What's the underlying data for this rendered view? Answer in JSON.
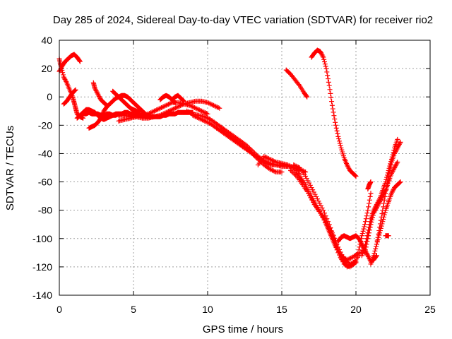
{
  "chart_data": {
    "type": "scatter",
    "title": "Day 285 of 2024, Sidereal Day-to-day VTEC variation (SDTVAR) for receiver rio2",
    "xlabel": "GPS time / hours",
    "ylabel": "SDTVAR / TECUs",
    "xlim": [
      0,
      25
    ],
    "ylim": [
      -140,
      40
    ],
    "xticks": [
      0,
      5,
      10,
      15,
      20,
      25
    ],
    "yticks": [
      -140,
      -120,
      -100,
      -80,
      -60,
      -40,
      -20,
      0,
      20,
      40
    ],
    "grid": true,
    "marker": "+",
    "color": "#ff0000",
    "series": [
      {
        "x": [
          0.0,
          0.2,
          0.4,
          0.6,
          0.8,
          1.0,
          1.2,
          1.4
        ],
        "y": [
          18,
          22,
          25,
          27,
          29,
          30,
          28,
          25
        ]
      },
      {
        "x": [
          0.0,
          0.1,
          0.3,
          0.5,
          0.7,
          0.9,
          1.0,
          1.1,
          1.2,
          1.4,
          1.6
        ],
        "y": [
          27,
          22,
          14,
          10,
          5,
          0,
          -4,
          -8,
          -12,
          -14,
          -15
        ]
      },
      {
        "x": [
          0.3,
          0.5,
          0.7,
          0.9,
          1.1
        ],
        "y": [
          -5,
          -3,
          0,
          3,
          5
        ]
      },
      {
        "x": [
          1.6,
          1.8,
          2.0,
          2.2,
          2.4,
          2.6,
          2.8,
          3.0,
          3.2,
          3.4,
          3.6,
          3.8,
          4.0,
          4.2,
          4.4,
          4.6,
          4.8,
          5.0,
          5.2,
          5.4,
          5.6,
          5.8,
          6.0,
          6.2,
          6.4,
          6.6,
          6.8,
          7.0,
          7.2,
          7.4,
          7.6,
          7.8,
          8.0,
          8.2,
          8.4,
          8.6,
          8.8,
          9.0
        ],
        "y": [
          -12,
          -12,
          -11,
          -12,
          -12,
          -12,
          -13,
          -13,
          -12,
          -12,
          -13,
          -13,
          -12,
          -12,
          -11,
          -11,
          -12,
          -12,
          -13,
          -13,
          -13,
          -14,
          -14,
          -14,
          -14,
          -14,
          -14,
          -13,
          -13,
          -12,
          -12,
          -12,
          -11,
          -11,
          -11,
          -11,
          -11,
          -11
        ]
      },
      {
        "x": [
          2.0,
          2.2,
          2.4,
          2.6,
          2.8,
          3.0,
          3.2,
          3.4,
          3.6,
          3.8,
          4.0,
          4.2,
          4.4,
          4.6,
          4.8,
          5.0,
          5.2,
          5.4,
          5.6,
          5.8,
          6.0
        ],
        "y": [
          -22,
          -21,
          -20,
          -18,
          -15,
          -10,
          -7,
          -5,
          -3,
          -1,
          0,
          1,
          1,
          0,
          -2,
          -4,
          -6,
          -8,
          -10,
          -12,
          -14
        ]
      },
      {
        "x": [
          1.2,
          1.4,
          1.6,
          1.8,
          2.0,
          2.2,
          2.4,
          2.6,
          2.8,
          3.0,
          3.2,
          3.4,
          3.6,
          3.8,
          4.0
        ],
        "y": [
          -15,
          -13,
          -11,
          -9,
          -9,
          -10,
          -11,
          -13,
          -15,
          -16,
          -15,
          -14,
          -13,
          -12,
          -12
        ]
      },
      {
        "x": [
          2.3,
          2.4,
          2.6,
          2.8,
          3.0,
          3.2
        ],
        "y": [
          10,
          6,
          2,
          -2,
          -4,
          -6
        ]
      },
      {
        "x": [
          3.6,
          3.8,
          4.0,
          4.2,
          4.4,
          4.6,
          4.8,
          5.0,
          5.2,
          5.4
        ],
        "y": [
          4,
          2,
          0,
          -2,
          -4,
          -6,
          -8,
          -9,
          -10,
          -11
        ]
      },
      {
        "x": [
          4.0,
          4.4,
          4.8,
          5.2,
          5.6,
          6.0,
          6.4,
          6.8,
          7.2,
          7.6,
          8.0,
          8.4,
          8.8,
          9.2,
          9.6,
          10.0,
          10.4,
          10.8
        ],
        "y": [
          -13,
          -13,
          -14,
          -14,
          -15,
          -15,
          -14,
          -13,
          -11,
          -9,
          -7,
          -5,
          -4,
          -3,
          -3,
          -4,
          -6,
          -8
        ]
      },
      {
        "x": [
          4.0,
          4.4,
          4.8,
          5.2,
          5.6,
          6.0,
          6.4,
          6.8,
          7.2,
          7.6,
          8.0,
          8.4,
          8.8,
          9.2,
          9.6,
          10.0
        ],
        "y": [
          -17,
          -16,
          -15,
          -14,
          -13,
          -12,
          -10,
          -8,
          -6,
          -4,
          -4,
          -5,
          -6,
          -8,
          -10,
          -12
        ]
      },
      {
        "x": [
          6.8,
          7.0,
          7.2,
          7.4,
          7.6,
          7.8
        ],
        "y": [
          -2,
          0,
          1,
          0,
          -2,
          -4
        ]
      },
      {
        "x": [
          7.6,
          7.8,
          8.0,
          8.2,
          8.4
        ],
        "y": [
          -2,
          0,
          1,
          -1,
          -3
        ]
      },
      {
        "x": [
          8.6,
          9.0,
          9.4,
          9.8,
          10.2,
          10.6,
          11.0,
          11.4,
          11.8,
          12.2,
          12.6,
          13.0,
          13.4,
          13.8,
          14.2,
          14.6,
          15.0,
          15.4,
          15.8,
          16.2
        ],
        "y": [
          -10,
          -12,
          -13,
          -14,
          -16,
          -19,
          -22,
          -25,
          -28,
          -31,
          -34,
          -38,
          -42,
          -45,
          -47,
          -48,
          -49,
          -49,
          -50,
          -52
        ]
      },
      {
        "x": [
          9.0,
          9.4,
          9.8,
          10.2,
          10.6,
          11.0,
          11.4,
          11.8,
          12.2,
          12.6,
          13.0,
          13.4,
          13.8,
          14.2,
          14.6,
          15.0,
          15.4,
          15.8,
          16.2,
          16.6
        ],
        "y": [
          -13,
          -15,
          -17,
          -19,
          -22,
          -25,
          -28,
          -31,
          -34,
          -37,
          -40,
          -43,
          -46,
          -48,
          -48,
          -48,
          -49,
          -50,
          -51,
          -53
        ]
      },
      {
        "x": [
          10.6,
          11.0,
          11.4,
          11.8,
          12.2,
          12.6,
          13.0,
          13.4,
          13.8,
          14.2,
          14.6,
          15.0
        ],
        "y": [
          -22,
          -24,
          -27,
          -30,
          -33,
          -36,
          -40,
          -44,
          -48,
          -51,
          -53,
          -53
        ]
      },
      {
        "x": [
          13.4,
          13.8,
          14.2,
          14.6,
          15.0,
          15.4,
          15.8,
          16.2,
          16.6,
          17.0,
          17.4,
          17.8,
          18.2,
          18.6,
          19.0,
          19.4,
          19.8,
          20.2
        ],
        "y": [
          -48,
          -42,
          -44,
          -46,
          -47,
          -48,
          -50,
          -55,
          -62,
          -70,
          -78,
          -85,
          -95,
          -105,
          -112,
          -115,
          -113,
          -110
        ]
      },
      {
        "x": [
          15.6,
          16.0,
          16.4,
          16.8,
          17.2,
          17.6,
          18.0,
          18.4,
          18.8,
          19.2,
          19.6,
          20.0
        ],
        "y": [
          -52,
          -56,
          -62,
          -68,
          -75,
          -82,
          -90,
          -100,
          -110,
          -118,
          -120,
          -117
        ]
      },
      {
        "x": [
          15.8,
          16.2,
          16.6,
          17.0,
          17.4,
          17.8,
          18.2,
          18.6,
          19.0,
          19.4,
          19.8,
          20.2,
          20.6
        ],
        "y": [
          -48,
          -50,
          -56,
          -64,
          -72,
          -80,
          -90,
          -102,
          -114,
          -120,
          -118,
          -112,
          -106
        ]
      },
      {
        "x": [
          16.0,
          16.4,
          16.8,
          17.2,
          17.6,
          18.0,
          18.4,
          18.8,
          19.2,
          19.6,
          20.0
        ],
        "y": [
          -55,
          -60,
          -68,
          -76,
          -82,
          -88,
          -96,
          -106,
          -115,
          -118,
          -116
        ]
      },
      {
        "x": [
          18.8,
          19.0,
          19.2,
          19.4,
          19.6,
          19.8,
          20.0,
          20.2,
          20.4,
          20.6,
          20.8,
          21.0,
          21.2,
          21.4
        ],
        "y": [
          -102,
          -99,
          -98,
          -99,
          -100,
          -99,
          -98,
          -100,
          -104,
          -108,
          -112,
          -116,
          -115,
          -112
        ]
      },
      {
        "x": [
          20.4,
          20.6,
          20.8,
          21.0,
          21.2,
          21.4,
          21.6,
          21.8,
          22.0,
          22.2,
          22.4,
          22.6,
          22.8
        ],
        "y": [
          -112,
          -106,
          -96,
          -86,
          -80,
          -76,
          -72,
          -66,
          -60,
          -52,
          -44,
          -36,
          -30
        ]
      },
      {
        "x": [
          20.6,
          20.8,
          21.0,
          21.2,
          21.4,
          21.6,
          21.8,
          22.0,
          22.2,
          22.4,
          22.6,
          22.8
        ],
        "y": [
          -110,
          -100,
          -90,
          -82,
          -78,
          -74,
          -70,
          -66,
          -60,
          -54,
          -50,
          -46
        ]
      },
      {
        "x": [
          21.0,
          21.2,
          21.4,
          21.6,
          21.8,
          22.0,
          22.2,
          22.4,
          22.6,
          22.8,
          23.0
        ],
        "y": [
          -118,
          -112,
          -104,
          -96,
          -88,
          -80,
          -74,
          -68,
          -64,
          -62,
          -60
        ]
      },
      {
        "x": [
          20.2,
          20.4,
          20.6,
          20.8,
          21.0
        ],
        "y": [
          -108,
          -98,
          -90,
          -80,
          -68
        ]
      },
      {
        "x": [
          20.8,
          20.9,
          21.0
        ],
        "y": [
          -65,
          -62,
          -60
        ]
      },
      {
        "x": [
          21.4,
          21.6,
          21.8,
          22.0,
          22.2,
          22.4,
          22.6,
          22.8,
          23.0
        ],
        "y": [
          -104,
          -92,
          -80,
          -68,
          -56,
          -46,
          -40,
          -36,
          -32
        ]
      },
      {
        "x": [
          22.0,
          22.2
        ],
        "y": [
          -98,
          -98
        ]
      },
      {
        "x": [
          15.3,
          15.6,
          15.9,
          16.2,
          16.5,
          16.7
        ],
        "y": [
          19,
          16,
          12,
          8,
          3,
          0
        ]
      },
      {
        "x": [
          17.0,
          17.2,
          17.4,
          17.6,
          17.8,
          18.0,
          18.2,
          18.4,
          18.6,
          18.8,
          19.0,
          19.2,
          19.4,
          19.6,
          19.8,
          20.0
        ],
        "y": [
          28,
          31,
          33,
          32,
          28,
          20,
          8,
          -6,
          -18,
          -28,
          -36,
          -43,
          -48,
          -52,
          -54,
          -56
        ]
      }
    ]
  }
}
